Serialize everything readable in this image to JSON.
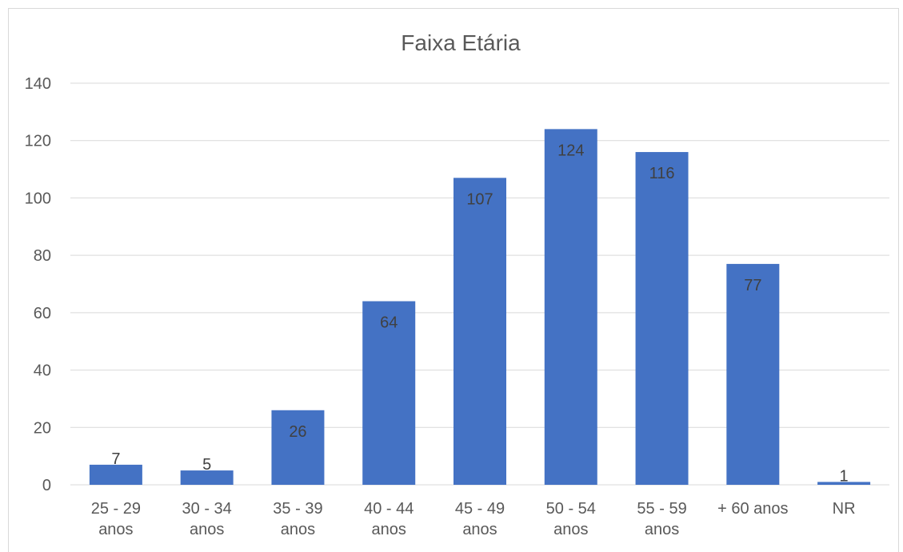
{
  "chart_data": {
    "type": "bar",
    "title": "Faixa Etária",
    "categories": [
      [
        "25 - 29",
        "anos"
      ],
      [
        "30 - 34",
        "anos"
      ],
      [
        "35 - 39",
        "anos"
      ],
      [
        "40 - 44",
        "anos"
      ],
      [
        "45 - 49",
        "anos"
      ],
      [
        "50 - 54",
        "anos"
      ],
      [
        "55 - 59",
        "anos"
      ],
      [
        "+ 60 anos"
      ],
      [
        "NR"
      ]
    ],
    "values": [
      7,
      5,
      26,
      64,
      107,
      124,
      116,
      77,
      1
    ],
    "ylim": [
      0,
      140
    ],
    "yticks": [
      0,
      20,
      40,
      60,
      80,
      100,
      120,
      140
    ],
    "grid": true,
    "bar_color": "#4472c4",
    "data_labels": true
  }
}
